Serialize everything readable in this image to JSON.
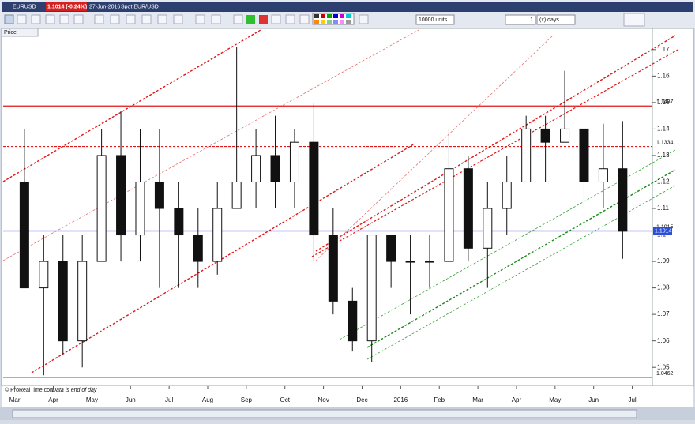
{
  "header": {
    "symbol": "EURUSD",
    "price": "1.1014 (-0.24%)",
    "date": "27-Jun-2016",
    "description": "Spot EUR/USD",
    "units": "10000 units",
    "period_count": "1",
    "period_unit": "(x) days",
    "panel": "Price",
    "footer_copyright": "© ProRealTime.com",
    "footer_note": "Data is end of day"
  },
  "chart_data": {
    "type": "candlestick",
    "x": [
      0.5,
      1.5,
      2.5,
      3.5,
      4.5,
      5.5,
      6.5,
      7.5,
      8.5,
      9.5,
      10.5,
      11.5,
      12.5,
      13.5,
      14.5,
      15.5,
      16.5,
      17.5,
      18.5,
      19.5,
      20.5,
      21.5,
      22.5,
      23.5,
      24.5,
      25.5,
      26.5,
      27.5,
      28.5,
      29.5,
      30.5,
      31.5
    ],
    "open": [
      1.12,
      1.08,
      1.09,
      1.06,
      1.09,
      1.13,
      1.1,
      1.12,
      1.11,
      1.1,
      1.09,
      1.11,
      1.12,
      1.13,
      1.12,
      1.135,
      1.1,
      1.075,
      1.06,
      1.1,
      1.09,
      1.09,
      1.09,
      1.125,
      1.095,
      1.11,
      1.12,
      1.14,
      1.135,
      1.14,
      1.12,
      1.125
    ],
    "high": [
      1.14,
      1.1,
      1.1,
      1.1,
      1.14,
      1.147,
      1.14,
      1.14,
      1.12,
      1.11,
      1.12,
      1.171,
      1.14,
      1.145,
      1.14,
      1.15,
      1.11,
      1.08,
      1.1,
      1.1,
      1.1,
      1.1,
      1.14,
      1.13,
      1.12,
      1.13,
      1.145,
      1.145,
      1.162,
      1.14,
      1.142,
      1.143
    ],
    "low": [
      1.08,
      1.047,
      1.055,
      1.05,
      1.09,
      1.09,
      1.09,
      1.08,
      1.08,
      1.08,
      1.085,
      1.11,
      1.11,
      1.11,
      1.11,
      1.09,
      1.07,
      1.056,
      1.052,
      1.08,
      1.07,
      1.08,
      1.09,
      1.09,
      1.08,
      1.1,
      1.12,
      1.12,
      1.135,
      1.11,
      1.11,
      1.091
    ],
    "close": [
      1.08,
      1.09,
      1.06,
      1.09,
      1.13,
      1.1,
      1.12,
      1.11,
      1.1,
      1.09,
      1.11,
      1.12,
      1.13,
      1.12,
      1.135,
      1.1,
      1.075,
      1.06,
      1.1,
      1.09,
      1.09,
      1.09,
      1.125,
      1.095,
      1.11,
      1.12,
      1.14,
      1.135,
      1.14,
      1.12,
      1.125,
      1.1014
    ],
    "xlim": [
      -0.6,
      33
    ],
    "xticks": [
      {
        "value": 0,
        "label": "Mar"
      },
      {
        "value": 2,
        "label": "Apr"
      },
      {
        "value": 4,
        "label": "May"
      },
      {
        "value": 6,
        "label": "Jun"
      },
      {
        "value": 8,
        "label": "Jul"
      },
      {
        "value": 10,
        "label": "Aug"
      },
      {
        "value": 12,
        "label": "Sep"
      },
      {
        "value": 14,
        "label": "Oct"
      },
      {
        "value": 16,
        "label": "Nov"
      },
      {
        "value": 18,
        "label": "Dec"
      },
      {
        "value": 20,
        "label": "2016"
      },
      {
        "value": 22,
        "label": "Feb"
      },
      {
        "value": 24,
        "label": "Mar"
      },
      {
        "value": 26,
        "label": "Apr"
      },
      {
        "value": 28,
        "label": "May"
      },
      {
        "value": 30,
        "label": "Jun"
      },
      {
        "value": 32,
        "label": "Jul"
      }
    ],
    "ylim": [
      1.0432,
      1.178
    ],
    "yticks": [
      1.05,
      1.06,
      1.07,
      1.08,
      1.09,
      1.1,
      1.11,
      1.12,
      1.13,
      1.14,
      1.15,
      1.16,
      1.17
    ],
    "levels": [
      {
        "value": 1.1487,
        "color": "#e01818",
        "dashed": false
      },
      {
        "value": 1.1334,
        "color": "#e01818",
        "dashed": true
      },
      {
        "value": 1.1015,
        "color": "#1a1adb",
        "dashed": false
      },
      {
        "value": 1.0462,
        "color": "#1a8a1a",
        "dashed": false
      }
    ],
    "last": 1.1014,
    "up_color": "#ffffff",
    "down_color": "#111111"
  }
}
